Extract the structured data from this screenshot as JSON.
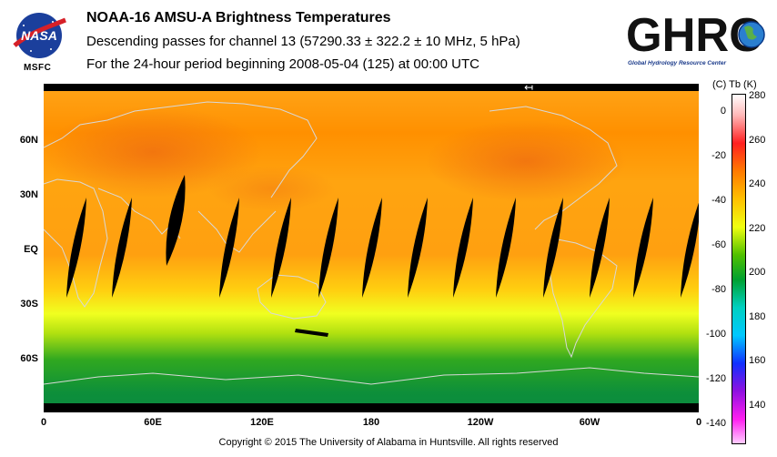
{
  "header": {
    "title": "NOAA-16 AMSU-A Brightness Temperatures",
    "subtitle": "Descending passes for channel 13 (57290.33 ± 322.2 ± 10 MHz, 5 hPa)",
    "period": "For the 24-hour period beginning 2008-05-04 (125) at 00:00 UTC"
  },
  "logos": {
    "nasa_caption": "MSFC",
    "nasa_wordmark": "NASA",
    "ghrc_wordmark": "GHRC",
    "ghrc_caption": "Global Hydrology Resource Center"
  },
  "map": {
    "lat_labels": [
      "60N",
      "30N",
      "EQ",
      "30S",
      "60S"
    ],
    "lon_labels": [
      "0",
      "60E",
      "120E",
      "180",
      "120W",
      "60W",
      "0"
    ],
    "direction_marker": "↤",
    "colors": {
      "orange": "#ff9a10",
      "yellow": "#e8ff20",
      "green": "#0a9a30",
      "gap": "#000000",
      "coast": "#d0d0d0"
    }
  },
  "colorbar": {
    "units_label": "(C)  Tb  (K)",
    "celsius_ticks": [
      "0",
      "-20",
      "-40",
      "-60",
      "-80",
      "-100",
      "-120",
      "-140"
    ],
    "kelvin_ticks": [
      "280",
      "260",
      "240",
      "220",
      "200",
      "180",
      "160",
      "140"
    ]
  },
  "footer": {
    "copyright": "Copyright © 2015 The University of Alabama in Huntsville.  All rights reserved"
  }
}
